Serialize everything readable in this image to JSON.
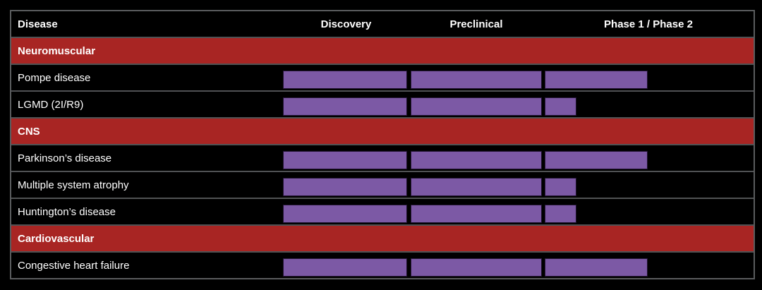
{
  "colors": {
    "background": "#000000",
    "category_red": "#a82523",
    "bar_purple": "#7c59a5",
    "bar_border": "#221432",
    "table_border": "#5a5c5e",
    "row_separator": "#505254",
    "text": "#ffffff"
  },
  "table": {
    "header": {
      "disease": "Disease",
      "phases": [
        "Discovery",
        "Preclinical",
        "Phase 1 / Phase 2"
      ]
    }
  },
  "chart_data": {
    "type": "table",
    "title": "",
    "columns": [
      "Disease",
      "Discovery",
      "Preclinical",
      "Phase 1 / Phase 2"
    ],
    "stage_column_fill_note": "values are fraction of each stage column filled by the purple bar",
    "groups": [
      {
        "category": "Neuromuscular",
        "diseases": [
          {
            "name": "Pompe disease",
            "discovery": 1.0,
            "preclinical": 1.0,
            "phase1_phase2": 0.49
          },
          {
            "name": "LGMD (2I/R9)",
            "discovery": 1.0,
            "preclinical": 1.0,
            "phase1_phase2": 0.15
          }
        ]
      },
      {
        "category": "CNS",
        "diseases": [
          {
            "name": "Parkinson’s disease",
            "discovery": 1.0,
            "preclinical": 1.0,
            "phase1_phase2": 0.49
          },
          {
            "name": "Multiple system atrophy",
            "discovery": 1.0,
            "preclinical": 1.0,
            "phase1_phase2": 0.15
          },
          {
            "name": "Huntington’s disease",
            "discovery": 1.0,
            "preclinical": 1.0,
            "phase1_phase2": 0.15
          }
        ]
      },
      {
        "category": "Cardiovascular",
        "diseases": [
          {
            "name": "Congestive heart failure",
            "discovery": 1.0,
            "preclinical": 1.0,
            "phase1_phase2": 0.49
          }
        ]
      }
    ]
  }
}
